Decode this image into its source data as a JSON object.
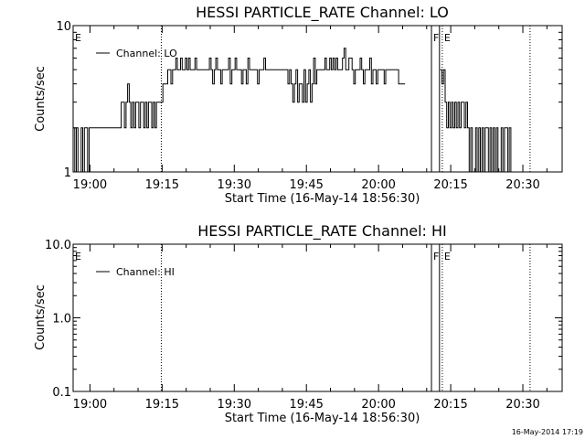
{
  "footer": {
    "timestamp": "16-May-2014 17:19"
  },
  "chart_data": [
    {
      "type": "line",
      "title": "HESSI PARTICLE_RATE Channel: LO",
      "xlabel": "Start Time (16-May-14 18:56:30)",
      "ylabel": "Counts/sec",
      "yscale": "log",
      "ylim": [
        1,
        10
      ],
      "xlim": [
        "18:56:30",
        "20:38:10"
      ],
      "x_ticks": [
        "19:00",
        "19:15",
        "19:30",
        "19:45",
        "20:00",
        "20:15",
        "20:30"
      ],
      "y_ticks": [
        "1",
        "10"
      ],
      "legend": "top-left",
      "markers": [
        {
          "label": "E",
          "time": "18:56:30",
          "style": "none"
        },
        {
          "label": "",
          "time": "19:14:50",
          "style": "dotted"
        },
        {
          "label": "F",
          "time": "20:11:00",
          "style": "solid"
        },
        {
          "label": "",
          "time": "20:12:40",
          "style": "solid"
        },
        {
          "label": "E",
          "time": "20:13:15",
          "style": "dotted"
        },
        {
          "label": "",
          "time": "20:31:30",
          "style": "dotted"
        }
      ],
      "gaps": [
        [
          "20:11:00",
          "20:12:50"
        ]
      ],
      "series": [
        {
          "name": "Channel: LO",
          "segments": [
            {
              "t_start": "18:56:30",
              "step_sec": 20,
              "values": [
                2,
                1,
                2,
                1,
                1,
                2,
                1,
                2,
                2,
                1,
                2,
                2,
                2,
                2,
                2,
                2,
                2,
                2,
                2,
                2,
                2,
                2,
                2,
                2,
                2,
                2,
                2,
                2,
                2,
                2,
                3,
                3,
                2,
                3,
                4,
                3,
                2,
                3,
                2,
                3,
                3,
                2,
                3,
                3,
                2,
                3,
                2,
                3,
                3,
                2,
                3,
                2,
                3,
                3,
                3,
                3,
                4,
                4,
                4,
                5,
                5,
                4,
                5,
                5,
                6,
                5,
                5,
                6,
                5,
                5,
                6,
                5,
                6,
                5,
                5,
                5,
                6,
                5,
                5,
                5,
                5,
                5,
                5,
                5,
                5,
                6,
                5,
                4,
                5,
                6,
                5,
                5,
                4,
                5,
                5,
                5,
                5,
                6,
                4,
                5,
                5,
                6,
                5,
                5,
                5,
                4,
                5,
                5,
                4,
                6,
                5,
                5,
                5,
                5,
                5,
                4,
                5,
                5,
                5,
                6,
                5,
                5,
                5,
                5,
                5,
                5,
                5,
                5,
                5,
                5,
                5,
                5,
                5,
                5,
                4,
                5,
                4,
                3,
                4,
                5,
                3,
                4,
                4,
                3,
                5,
                3,
                4,
                5,
                3,
                4,
                6,
                4,
                5,
                5,
                5,
                5,
                5,
                6,
                5,
                5,
                6,
                5,
                6,
                5,
                6,
                5,
                5,
                5,
                6,
                7,
                5,
                5,
                6,
                6,
                5,
                4,
                5,
                5,
                5,
                6,
                5,
                4,
                5,
                5,
                5,
                6,
                4,
                5,
                5,
                4,
                5,
                5,
                5,
                5,
                4,
                5,
                5,
                5,
                5,
                5,
                5,
                5,
                5,
                4,
                4,
                4,
                4
              ]
            },
            {
              "t_start": "20:12:50",
              "step_sec": 20,
              "values": [
                5,
                4,
                5,
                3,
                2,
                3,
                2,
                3,
                2,
                3,
                2,
                3,
                2,
                3,
                3,
                2,
                3,
                2,
                1,
                2,
                1,
                1,
                2,
                1,
                2,
                1,
                2,
                1,
                2,
                2,
                1,
                2,
                1,
                2,
                1,
                2,
                1,
                1,
                2,
                1,
                2,
                2,
                1,
                2,
                1,
                1
              ]
            }
          ]
        }
      ]
    },
    {
      "type": "line",
      "title": "HESSI PARTICLE_RATE Channel: HI",
      "xlabel": "Start Time (16-May-14 18:56:30)",
      "ylabel": "Counts/sec",
      "yscale": "log",
      "ylim": [
        0.1,
        10
      ],
      "xlim": [
        "18:56:30",
        "20:38:10"
      ],
      "x_ticks": [
        "19:00",
        "19:15",
        "19:30",
        "19:45",
        "20:00",
        "20:15",
        "20:30"
      ],
      "y_ticks": [
        "0.1",
        "1.0",
        "10.0"
      ],
      "legend": "top-left",
      "markers": [
        {
          "label": "E",
          "time": "18:56:30",
          "style": "none"
        },
        {
          "label": "",
          "time": "19:14:50",
          "style": "dotted"
        },
        {
          "label": "F",
          "time": "20:11:00",
          "style": "solid"
        },
        {
          "label": "",
          "time": "20:12:40",
          "style": "solid"
        },
        {
          "label": "E",
          "time": "20:13:15",
          "style": "dotted"
        },
        {
          "label": "",
          "time": "20:31:30",
          "style": "dotted"
        }
      ],
      "series": [
        {
          "name": "Channel: HI",
          "segments": []
        }
      ]
    }
  ]
}
